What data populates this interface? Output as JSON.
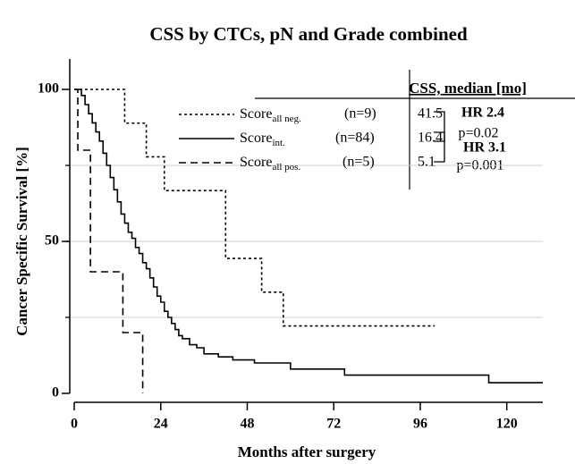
{
  "chart_data": {
    "type": "step",
    "title": "CSS by CTCs, pN and Grade combined",
    "x_label": "Months after surgery",
    "y_label": "Cancer Specific Survival  [%]",
    "xlim": [
      0,
      130
    ],
    "ylim": [
      0,
      110
    ],
    "xticks": [
      0,
      24,
      48,
      72,
      96,
      120
    ],
    "yticks": [
      0,
      50,
      100
    ],
    "grid_y": [
      25,
      50,
      75
    ],
    "table_header": "CSS, median [mo]",
    "series": [
      {
        "name": "Score",
        "subscript": "all neg.",
        "n": "(n=9)",
        "median": 41.5,
        "color": "#000000",
        "line_style": "dotted",
        "x": [
          0,
          14,
          20,
          25,
          42,
          52,
          58,
          100
        ],
        "values": [
          100,
          88.9,
          77.8,
          66.7,
          44.4,
          33.3,
          22.2,
          22.2
        ]
      },
      {
        "name": "Score",
        "subscript": "int.",
        "n": "(n=84)",
        "median": 16.4,
        "color": "#000000",
        "line_style": "solid",
        "x": [
          0,
          2,
          3,
          4,
          5,
          6,
          7,
          8,
          9,
          10,
          11,
          12,
          13,
          14,
          15,
          16,
          17,
          18,
          19,
          20,
          21,
          22,
          23,
          24,
          25,
          26,
          27,
          28,
          29,
          30,
          32,
          34,
          36,
          40,
          44,
          50,
          60,
          75,
          115,
          130
        ],
        "values": [
          100,
          98,
          95,
          92,
          89,
          86,
          83,
          79,
          75,
          71,
          67,
          63,
          59,
          56,
          53,
          51,
          48,
          46,
          43,
          41,
          38,
          35,
          32,
          30,
          27,
          25,
          23,
          21,
          19,
          18,
          16,
          15,
          13,
          12,
          11,
          10,
          8,
          6,
          3.5,
          3.5
        ]
      },
      {
        "name": "Score",
        "subscript": "all pos.",
        "n": "(n=5)",
        "median": 5.1,
        "color": "#000000",
        "line_style": "dashed",
        "x": [
          0,
          1,
          4.5,
          13.5,
          19
        ],
        "values": [
          100,
          80,
          40,
          20,
          0
        ]
      }
    ],
    "comparisons": [
      {
        "hr": "HR 2.4",
        "p": "p=0.02"
      },
      {
        "hr": "HR 3.1",
        "p": "p=0.001"
      }
    ]
  }
}
